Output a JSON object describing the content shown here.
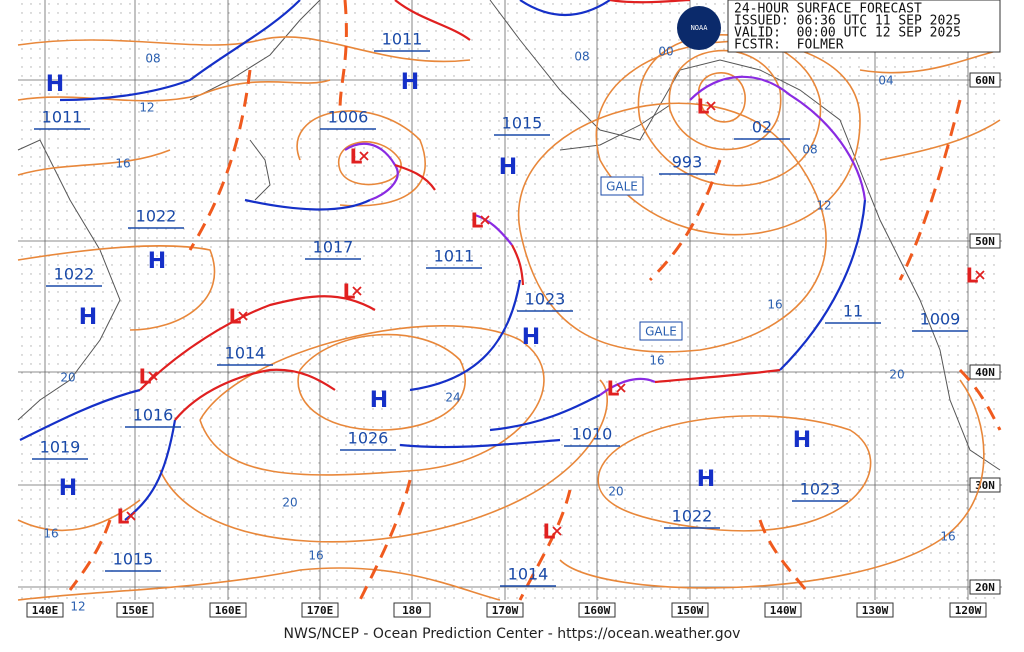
{
  "header": {
    "title": "24-HOUR SURFACE FORECAST",
    "issued": "ISSUED: 06:36 UTC 11 SEP 2025",
    "valid": "VALID:  00:00 UTC 12 SEP 2025",
    "forecaster": "FCSTR:  FOLMER",
    "logo": "NOAA"
  },
  "high_symbol": "H",
  "low_symbol": "L",
  "pressure_labels": [
    "1011",
    "1011",
    "1006",
    "1015",
    "993",
    "02",
    "1022",
    "1017",
    "1011",
    "1022",
    "1023",
    "11",
    "1009",
    "1014",
    "1016",
    "1026",
    "1010",
    "1019",
    "1023",
    "1022",
    "1015",
    "1014"
  ],
  "isobar_labels": [
    "08",
    "12",
    "16",
    "00",
    "08",
    "04",
    "08",
    "12",
    "16",
    "16",
    "20",
    "24",
    "20",
    "20",
    "20",
    "16",
    "16",
    "16",
    "12"
  ],
  "warnings": [
    "GALE",
    "GALE"
  ],
  "longitudes": [
    "140E",
    "150E",
    "160E",
    "170E",
    "180",
    "170W",
    "160W",
    "150W",
    "140W",
    "130W",
    "120W"
  ],
  "latitudes": [
    "60N",
    "50N",
    "40N",
    "30N",
    "20N"
  ],
  "footer": "NWS/NCEP - Ocean Prediction Center - https://ocean.weather.gov"
}
